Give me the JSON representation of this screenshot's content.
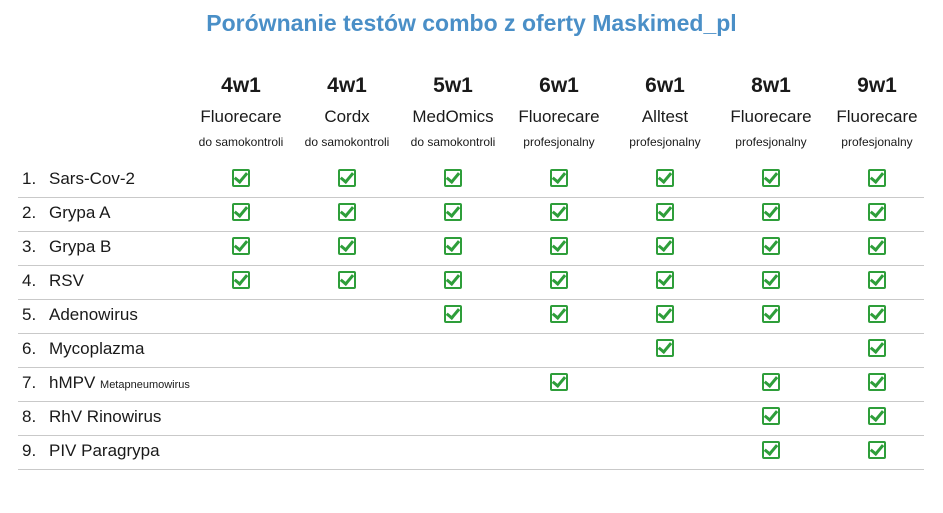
{
  "title": "Porównanie testów combo z oferty Maskimed_pl",
  "columns": [
    {
      "count": "4w1",
      "brand": "Fluorecare",
      "type": "do samokontroli"
    },
    {
      "count": "4w1",
      "brand": "Cordx",
      "type": "do samokontroli"
    },
    {
      "count": "5w1",
      "brand": "MedOmics",
      "type": "do samokontroli"
    },
    {
      "count": "6w1",
      "brand": "Fluorecare",
      "type": "profesjonalny"
    },
    {
      "count": "6w1",
      "brand": "Alltest",
      "type": "profesjonalny"
    },
    {
      "count": "8w1",
      "brand": "Fluorecare",
      "type": "profesjonalny"
    },
    {
      "count": "9w1",
      "brand": "Fluorecare",
      "type": "profesjonalny"
    }
  ],
  "rows": [
    {
      "num": "1.",
      "name": "Sars-Cov-2",
      "note": "",
      "checks": [
        true,
        true,
        true,
        true,
        true,
        true,
        true
      ]
    },
    {
      "num": "2.",
      "name": "Grypa A",
      "note": "",
      "checks": [
        true,
        true,
        true,
        true,
        true,
        true,
        true
      ]
    },
    {
      "num": "3.",
      "name": "Grypa B",
      "note": "",
      "checks": [
        true,
        true,
        true,
        true,
        true,
        true,
        true
      ]
    },
    {
      "num": "4.",
      "name": "RSV",
      "note": "",
      "checks": [
        true,
        true,
        true,
        true,
        true,
        true,
        true
      ]
    },
    {
      "num": "5.",
      "name": "Adenowirus",
      "note": "",
      "checks": [
        false,
        false,
        true,
        true,
        true,
        true,
        true
      ]
    },
    {
      "num": "6.",
      "name": "Mycoplazma",
      "note": "",
      "checks": [
        false,
        false,
        false,
        false,
        true,
        false,
        true
      ]
    },
    {
      "num": "7.",
      "name": "hMPV",
      "note": "Metapneumowirus",
      "checks": [
        false,
        false,
        false,
        true,
        false,
        true,
        true
      ]
    },
    {
      "num": "8.",
      "name": "RhV Rinowirus",
      "note": "",
      "checks": [
        false,
        false,
        false,
        false,
        false,
        true,
        true
      ]
    },
    {
      "num": "9.",
      "name": "PIV Paragrypa",
      "note": "",
      "checks": [
        false,
        false,
        false,
        false,
        false,
        true,
        true
      ]
    }
  ],
  "check_icon": "checkbox-checked-icon",
  "colors": {
    "title": "#4a8fc7",
    "check": "#2e9e3a",
    "row_line": "#c9c9c9"
  }
}
